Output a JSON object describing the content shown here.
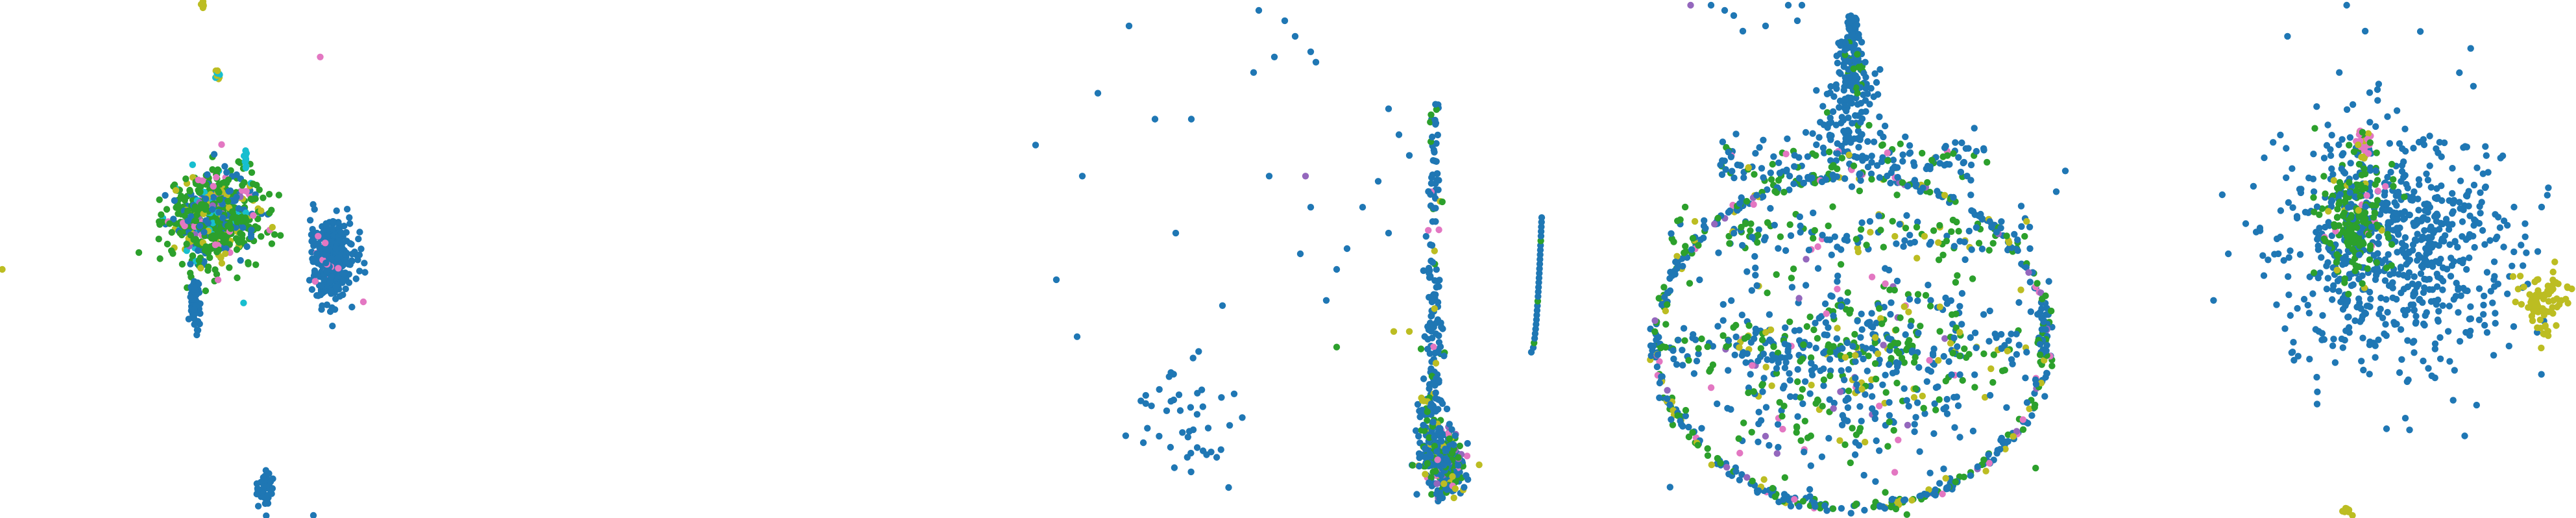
{
  "chart_data": {
    "type": "scatter",
    "title": "",
    "xlabel": "",
    "ylabel": "",
    "axes_visible": false,
    "grid": false,
    "legend": "none",
    "palette": {
      "blue": "#1f77b4",
      "green": "#2ca02c",
      "olive": "#bcbd22",
      "cyan": "#17becf",
      "pink": "#e377c2",
      "purple": "#9467bd"
    },
    "panels": [
      {
        "name": "panel-1",
        "xlim": [
          0,
          1
        ],
        "ylim": [
          0,
          1
        ],
        "clusters": [
          {
            "shape": "blob",
            "cx": 0.47,
            "cy": 0.58,
            "rx": 0.11,
            "ry": 0.1,
            "n": 650,
            "mix": {
              "green": 0.55,
              "blue": 0.2,
              "olive": 0.12,
              "pink": 0.05,
              "cyan": 0.05,
              "purple": 0.03
            }
          },
          {
            "shape": "blob",
            "cx": 0.73,
            "cy": 0.5,
            "rx": 0.055,
            "ry": 0.085,
            "n": 320,
            "mix": {
              "blue": 0.97,
              "pink": 0.03
            }
          },
          {
            "shape": "blob",
            "cx": 0.43,
            "cy": 0.41,
            "rx": 0.012,
            "ry": 0.05,
            "n": 50,
            "mix": {
              "blue": 1.0
            }
          },
          {
            "shape": "blob",
            "cx": 0.585,
            "cy": 0.055,
            "rx": 0.02,
            "ry": 0.04,
            "n": 45,
            "mix": {
              "blue": 1.0
            }
          },
          {
            "shape": "blob",
            "cx": 0.48,
            "cy": 0.855,
            "rx": 0.006,
            "ry": 0.012,
            "n": 10,
            "mix": {
              "cyan": 0.5,
              "olive": 0.5
            }
          },
          {
            "shape": "blob",
            "cx": 0.445,
            "cy": 0.99,
            "rx": 0.006,
            "ry": 0.01,
            "n": 8,
            "mix": {
              "olive": 1.0
            }
          },
          {
            "shape": "blob",
            "cx": 0.54,
            "cy": 0.695,
            "rx": 0.005,
            "ry": 0.03,
            "n": 10,
            "mix": {
              "cyan": 1.0
            }
          },
          {
            "shape": "points",
            "mix": {
              "pink": 1.0
            },
            "xs": [
              0.705
            ],
            "ys": [
              0.89
            ]
          },
          {
            "shape": "points",
            "mix": {
              "olive": 1.0
            },
            "xs": [
              0.005
            ],
            "ys": [
              0.48
            ]
          },
          {
            "shape": "points",
            "mix": {
              "blue": 1.0
            },
            "xs": [
              0.69
            ],
            "ys": [
              0.005
            ]
          }
        ]
      },
      {
        "name": "panel-2",
        "xlim": [
          0,
          1
        ],
        "ylim": [
          0,
          1
        ],
        "clusters": [
          {
            "shape": "blob",
            "cx": 0.81,
            "cy": 0.1,
            "rx": 0.04,
            "ry": 0.07,
            "n": 230,
            "mix": {
              "blue": 0.45,
              "green": 0.3,
              "olive": 0.12,
              "pink": 0.08,
              "purple": 0.05
            }
          },
          {
            "shape": "column",
            "cx0": 0.78,
            "cx1": 0.79,
            "cy0": 0.1,
            "cy1": 0.8,
            "width": 0.035,
            "n": 240,
            "mix": {
              "blue": 0.8,
              "green": 0.12,
              "olive": 0.05,
              "pink": 0.03
            }
          },
          {
            "shape": "blob",
            "cx": 0.3,
            "cy": 0.2,
            "rx": 0.1,
            "ry": 0.14,
            "n": 45,
            "mix": {
              "blue": 1.0
            }
          },
          {
            "shape": "arc",
            "x0": 0.975,
            "y0": 0.32,
            "x1": 0.995,
            "y1": 0.58,
            "n": 30,
            "mix": {
              "blue": 0.9,
              "green": 0.1
            }
          },
          {
            "shape": "points",
            "mix": {
              "blue": 1.0
            },
            "xs": [
              0.02,
              0.11,
              0.14,
              0.25,
              0.29,
              0.06,
              0.1,
              0.32,
              0.45,
              0.5,
              0.52,
              0.44,
              0.48,
              0.55,
              0.56,
              0.7,
              0.72,
              0.74,
              0.6,
              0.58,
              0.55,
              0.65,
              0.7,
              0.62,
              0.68,
              0.38,
              0.47,
              0.53,
              0.2
            ],
            "ys": [
              0.72,
              0.66,
              0.82,
              0.77,
              0.55,
              0.46,
              0.35,
              0.77,
              0.98,
              0.96,
              0.93,
              0.86,
              0.89,
              0.9,
              0.88,
              0.79,
              0.74,
              0.7,
              0.48,
              0.42,
              0.6,
              0.6,
              0.55,
              0.52,
              0.65,
              0.41,
              0.66,
              0.51,
              0.95
            ]
          },
          {
            "shape": "points",
            "mix": {
              "olive": 1.0
            },
            "xs": [
              0.74,
              0.71
            ],
            "ys": [
              0.36,
              0.36
            ]
          },
          {
            "shape": "points",
            "mix": {
              "green": 1.0
            },
            "xs": [
              0.6
            ],
            "ys": [
              0.33
            ]
          },
          {
            "shape": "points",
            "mix": {
              "purple": 1.0
            },
            "xs": [
              0.54
            ],
            "ys": [
              0.66
            ]
          }
        ]
      },
      {
        "name": "panel-3",
        "xlim": [
          0,
          1
        ],
        "ylim": [
          0,
          1
        ],
        "clusters": [
          {
            "shape": "ring",
            "cx": 0.52,
            "cy": 0.34,
            "rx": 0.43,
            "ry": 0.32,
            "n": 500,
            "mix": {
              "blue": 0.55,
              "green": 0.3,
              "olive": 0.08,
              "pink": 0.04,
              "purple": 0.03
            }
          },
          {
            "shape": "blob",
            "cx": 0.52,
            "cy": 0.3,
            "rx": 0.38,
            "ry": 0.26,
            "n": 520,
            "mix": {
              "blue": 0.5,
              "green": 0.32,
              "olive": 0.1,
              "pink": 0.05,
              "purple": 0.03
            }
          },
          {
            "shape": "cone",
            "cx": 0.52,
            "base_y": 0.68,
            "top_y": 0.97,
            "base_w": 0.1,
            "n": 220,
            "mix": {
              "blue": 0.95,
              "green": 0.05
            }
          },
          {
            "shape": "band",
            "cx": 0.52,
            "cy": 0.69,
            "rx": 0.3,
            "ry": 0.05,
            "n": 160,
            "mix": {
              "blue": 0.6,
              "green": 0.3,
              "olive": 0.05,
              "pink": 0.05
            }
          },
          {
            "shape": "band",
            "cx": 0.52,
            "cy": 0.55,
            "rx": 0.4,
            "ry": 0.04,
            "n": 140,
            "mix": {
              "blue": 0.55,
              "green": 0.35,
              "olive": 0.1
            }
          },
          {
            "shape": "band",
            "cx": 0.52,
            "cy": 0.33,
            "rx": 0.43,
            "ry": 0.035,
            "n": 140,
            "mix": {
              "blue": 0.55,
              "green": 0.35,
              "olive": 0.1
            }
          },
          {
            "shape": "points",
            "mix": {
              "blue": 1.0
            },
            "xs": [
              0.21,
              0.24,
              0.26,
              0.28,
              0.33,
              0.38,
              0.41,
              0.4,
              0.97,
              0.99
            ],
            "ys": [
              0.99,
              0.98,
              0.97,
              0.94,
              0.95,
              0.99,
              0.99,
              0.96,
              0.63,
              0.67
            ]
          },
          {
            "shape": "points",
            "mix": {
              "purple": 1.0
            },
            "xs": [
              0.165
            ],
            "ys": [
              0.99
            ]
          }
        ]
      },
      {
        "name": "panel-4",
        "xlim": [
          0,
          1
        ],
        "ylim": [
          0,
          1
        ],
        "clusters": [
          {
            "shape": "blob",
            "cx": 0.52,
            "cy": 0.52,
            "rx": 0.36,
            "ry": 0.26,
            "n": 700,
            "mix": {
              "blue": 1.0
            }
          },
          {
            "shape": "blob",
            "cx": 0.4,
            "cy": 0.58,
            "rx": 0.1,
            "ry": 0.12,
            "n": 220,
            "mix": {
              "green": 0.7,
              "blue": 0.2,
              "olive": 0.06,
              "pink": 0.04
            }
          },
          {
            "shape": "blob",
            "cx": 0.91,
            "cy": 0.42,
            "rx": 0.07,
            "ry": 0.07,
            "n": 80,
            "mix": {
              "olive": 1.0
            }
          },
          {
            "shape": "blob",
            "cx": 0.43,
            "cy": 0.72,
            "rx": 0.025,
            "ry": 0.04,
            "n": 25,
            "mix": {
              "pink": 0.5,
              "olive": 0.3,
              "green": 0.2
            }
          },
          {
            "shape": "points",
            "mix": {
              "blue": 1.0
            },
            "xs": [
              0.02,
              0.06,
              0.22,
              0.43,
              0.36,
              0.38,
              0.3,
              0.55
            ],
            "ys": [
              0.42,
              0.51,
              0.93,
              0.94,
              0.86,
              0.99,
              0.22,
              0.17
            ]
          },
          {
            "shape": "blob",
            "cx": 0.38,
            "cy": 0.015,
            "rx": 0.015,
            "ry": 0.01,
            "n": 10,
            "mix": {
              "olive": 1.0
            }
          }
        ]
      }
    ]
  }
}
